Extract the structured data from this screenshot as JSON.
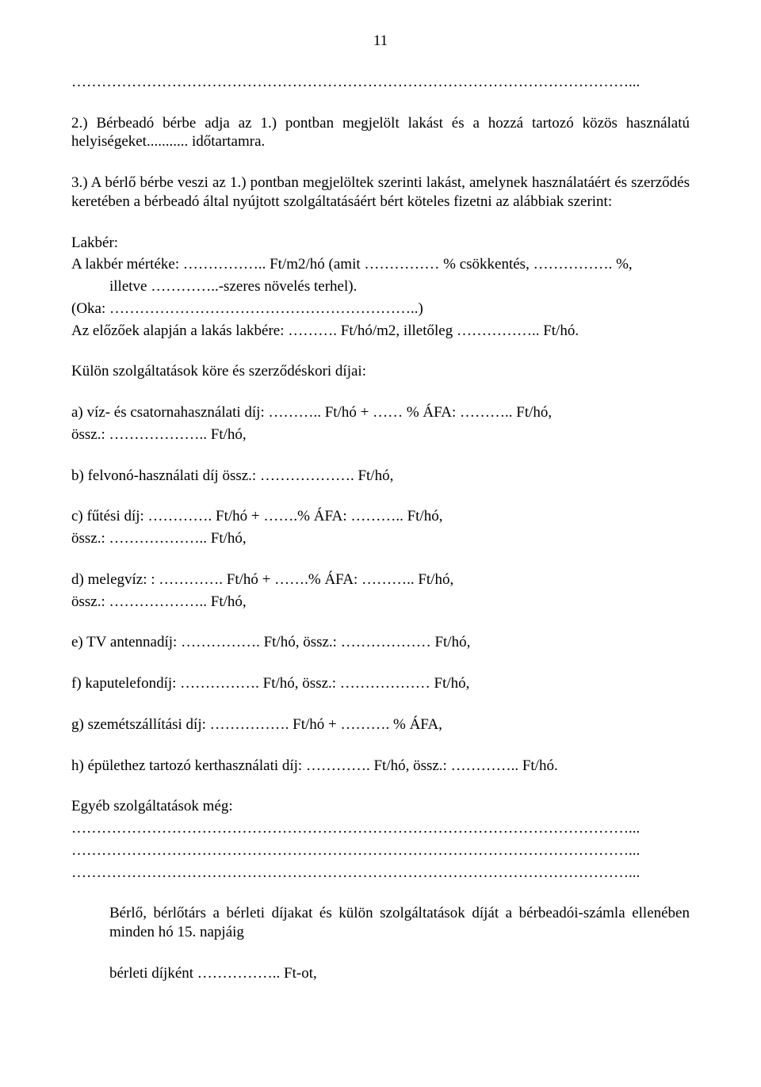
{
  "page_number": "11",
  "dotted_top": "…………………………………………………………………………………………………...",
  "para1": "2.) Bérbeadó bérbe adja az 1.) pontban megjelölt lakást és a hozzá tartozó közös használatú helyiségeket........... időtartamra.",
  "para2": "3.) A bérlő bérbe veszi az 1.) pontban megjelöltek szerinti lakást, amelynek használatáért és szerződés keretében a bérbeadó által nyújtott szolgáltatásáért bért köteles fizetni az alábbiak szerint:",
  "lakber_heading": "Lakbér:",
  "lakber_line1": "A lakbér mértéke: …………….. Ft/m2/hó (amit …………… % csökkentés, ……………. %,",
  "lakber_line2": "illetve …………..-szeres növelés terhel).",
  "oka_line": "(Oka: ……………………………………………………..)",
  "elozo_line": "Az előzőek alapján a lakás lakbére: ………. Ft/hó/m2, illetőleg …………….. Ft/hó.",
  "kulon_heading": "Külön szolgáltatások köre és szerződéskori díjai:",
  "item_a": "a) víz- és csatornahasználati díj: ……….. Ft/hó + …… % ÁFA: ……….. Ft/hó,",
  "item_a2": "össz.: ……………….. Ft/hó,",
  "item_b": "b) felvonó-használati díj össz.: ………………. Ft/hó,",
  "item_c": "c) fűtési díj: …………. Ft/hó + …….% ÁFA: ……….. Ft/hó,",
  "item_c2": "össz.: ……………….. Ft/hó,",
  "item_d": "d) melegvíz: : …………. Ft/hó + …….% ÁFA: ……….. Ft/hó,",
  "item_d2": "össz.: ……………….. Ft/hó,",
  "item_e": "e) TV antennadíj: ……………. Ft/hó, össz.: ……………… Ft/hó,",
  "item_f": "f) kaputelefondíj: ……………. Ft/hó, össz.: ……………… Ft/hó,",
  "item_g": "g) szemétszállítási díj: ……………. Ft/hó + ………. % ÁFA,",
  "item_h": "h) épülethez tartozó kerthasználati díj: …………. Ft/hó, össz.: ………….. Ft/hó.",
  "egyeb_heading": "Egyéb szolgáltatások még:",
  "dotted1": "…………………………………………………………………………………………………...",
  "dotted2": "…………………………………………………………………………………………………...",
  "dotted3": "…………………………………………………………………………………………………...",
  "berlo_para": "Bérlő, bérlőtárs a bérleti díjakat és külön szolgáltatások díját a bérbeadói-számla ellenében minden hó 15. napjáig",
  "berleti_line": "bérleti díjként    …………….. Ft-ot,"
}
